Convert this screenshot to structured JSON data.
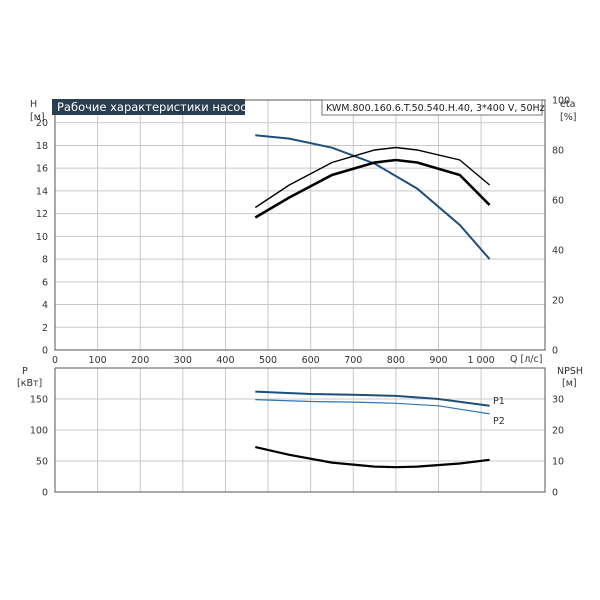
{
  "chart_data": [
    {
      "type": "line",
      "title": "Рабочие характеристики насоса",
      "model": "KWM.800.160.6.T.50.540.H.40, 3*400 V, 50Hz",
      "ylabel_left": "H",
      "ylabel_left_unit": "[м]",
      "ylabel_right": "eta",
      "ylabel_right_unit": "[%]",
      "xlabel": "Q [л/с]",
      "xlim": [
        0,
        1150
      ],
      "ylim_left": [
        0,
        22
      ],
      "ylim_right": [
        0,
        100
      ],
      "x_ticks": [
        "0",
        "100",
        "200",
        "300",
        "400",
        "500",
        "600",
        "700",
        "800",
        "900",
        "1 000"
      ],
      "y_ticks_left": [
        "0",
        "2",
        "4",
        "6",
        "8",
        "10",
        "12",
        "14",
        "16",
        "18",
        "20"
      ],
      "y_ticks_right": [
        "0",
        "20",
        "40",
        "60",
        "80",
        "100"
      ],
      "grid": true,
      "series": [
        {
          "axis": "left",
          "color": "#1f4e79",
          "x": [
            470,
            550,
            650,
            750,
            850,
            950,
            1020
          ],
          "values": [
            18.9,
            18.6,
            17.8,
            16.4,
            14.2,
            11.0,
            8.0
          ]
        },
        {
          "axis": "right",
          "color": "#000000",
          "x": [
            470,
            550,
            650,
            750,
            800,
            850,
            950,
            1020
          ],
          "values": [
            57,
            66,
            75,
            80,
            81,
            80,
            76,
            66
          ]
        },
        {
          "axis": "right",
          "color": "#000000",
          "x": [
            470,
            550,
            650,
            750,
            800,
            850,
            950,
            1020
          ],
          "values": [
            53,
            61,
            70,
            75,
            76,
            75,
            70,
            58
          ]
        }
      ]
    },
    {
      "type": "line",
      "ylabel_left": "P",
      "ylabel_left_unit": "[кВт]",
      "ylabel_right": "NPSH",
      "ylabel_right_unit": "[м]",
      "xlim": [
        0,
        1150
      ],
      "ylim_left": [
        0,
        200
      ],
      "ylim_right": [
        0,
        40
      ],
      "y_ticks_left": [
        "0",
        "50",
        "100",
        "150"
      ],
      "y_ticks_right": [
        "0",
        "10",
        "20",
        "30"
      ],
      "grid": true,
      "series": [
        {
          "name": "P1",
          "axis": "left",
          "color": "#1f4e79",
          "x": [
            470,
            600,
            700,
            800,
            900,
            1020
          ],
          "values": [
            162,
            158,
            157,
            155,
            150,
            139
          ]
        },
        {
          "name": "P2",
          "axis": "left",
          "color": "#2e75b6",
          "x": [
            470,
            600,
            700,
            800,
            900,
            1020
          ],
          "values": [
            149,
            146,
            145,
            143,
            139,
            126
          ]
        },
        {
          "axis": "right",
          "color": "#000000",
          "x": [
            470,
            550,
            650,
            750,
            800,
            850,
            950,
            1020
          ],
          "values": [
            14.5,
            12.0,
            9.5,
            8.2,
            8.0,
            8.2,
            9.2,
            10.4
          ]
        }
      ]
    }
  ]
}
